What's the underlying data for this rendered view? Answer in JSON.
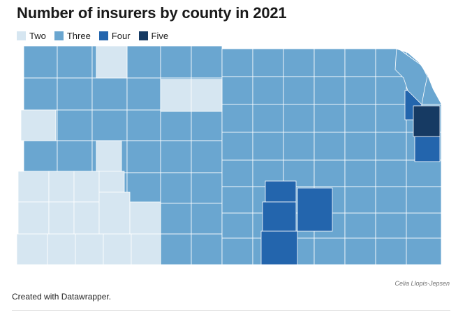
{
  "title": "Number of insurers by county in 2021",
  "legend": [
    {
      "label": "Two",
      "color": "#d6e6f1"
    },
    {
      "label": "Three",
      "color": "#6aa6d0"
    },
    {
      "label": "Four",
      "color": "#2365ad"
    },
    {
      "label": "Five",
      "color": "#163a63"
    }
  ],
  "chart_data": {
    "type": "choropleth",
    "region": "Kansas counties",
    "categories": [
      "Two",
      "Three",
      "Four",
      "Five"
    ],
    "colors": {
      "Two": "#d6e6f1",
      "Three": "#6aa6d0",
      "Four": "#2365ad",
      "Five": "#163a63"
    }
  },
  "credit": "Celia Llopis-Jepsen",
  "footer": "Created with Datawrapper."
}
